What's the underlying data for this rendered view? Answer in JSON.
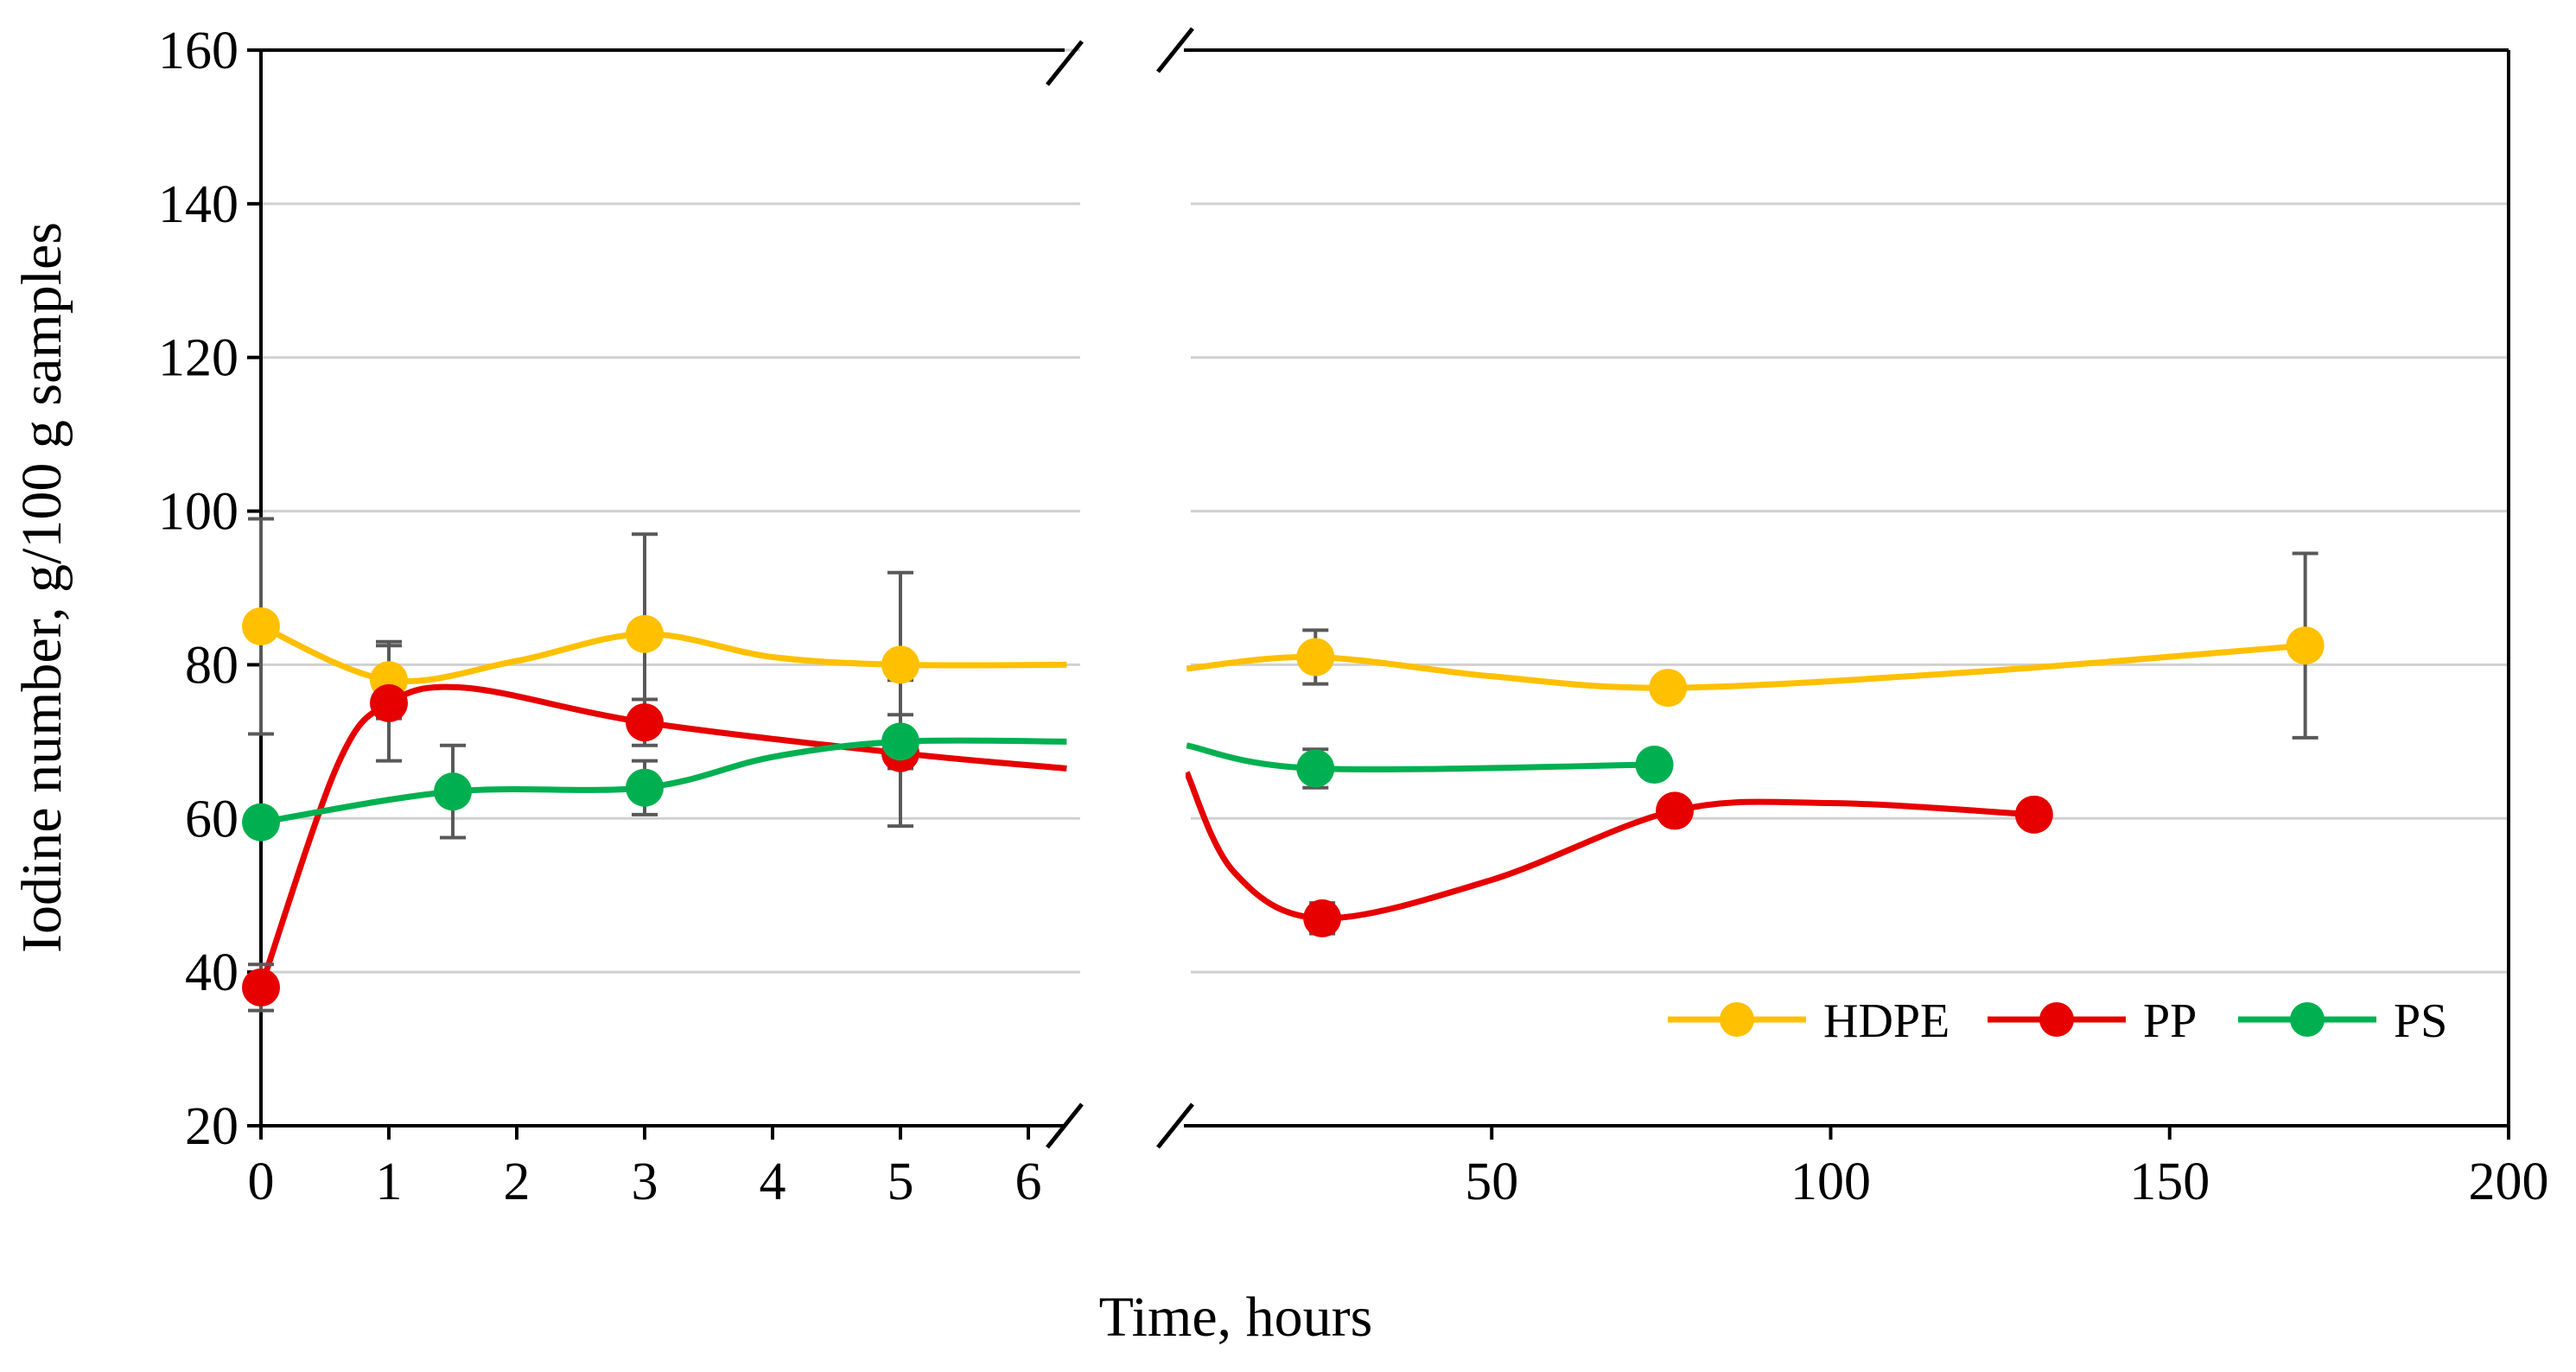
{
  "chart_data": {
    "type": "line",
    "title": "",
    "xlabel": "Time, hours",
    "ylabel": "Iodine number, g/100 g samples",
    "ylim": [
      20,
      160
    ],
    "yticks": [
      20,
      40,
      60,
      80,
      100,
      120,
      140,
      160
    ],
    "y_gridlines": true,
    "x_axis_broken": true,
    "panels": [
      {
        "name": "short",
        "xlim": [
          0,
          6
        ],
        "xticks": [
          0,
          1,
          2,
          3,
          4,
          5,
          6
        ]
      },
      {
        "name": "long",
        "xlim": [
          0,
          200
        ],
        "xticks": [
          50,
          100,
          150,
          200
        ]
      }
    ],
    "legend": {
      "placement": "bottom-right",
      "entries": [
        "HDPE",
        "PP",
        "PS"
      ]
    },
    "series": [
      {
        "name": "HDPE",
        "color": "#FFC000",
        "points": [
          {
            "x": 0,
            "y": 85,
            "err": 14,
            "panel": "short"
          },
          {
            "x": 1,
            "y": 78,
            "err": 5,
            "panel": "short"
          },
          {
            "x": 3,
            "y": 84,
            "err": 13,
            "panel": "short"
          },
          {
            "x": 5,
            "y": 80,
            "err": 12,
            "panel": "short"
          },
          {
            "x": 24,
            "y": 81,
            "err": 3.5,
            "panel": "long"
          },
          {
            "x": 76,
            "y": 77,
            "err": 0,
            "panel": "long"
          },
          {
            "x": 170,
            "y": 82.5,
            "err": 12,
            "panel": "long"
          }
        ],
        "curve_short": [
          [
            0,
            85
          ],
          [
            1,
            78
          ],
          [
            2,
            80.5
          ],
          [
            3,
            84
          ],
          [
            4,
            81
          ],
          [
            5,
            80
          ],
          [
            6.3,
            80
          ]
        ],
        "curve_long": [
          [
            5,
            79.5
          ],
          [
            24,
            81
          ],
          [
            50,
            78.5
          ],
          [
            76,
            77
          ],
          [
            120,
            79
          ],
          [
            170,
            82.5
          ]
        ]
      },
      {
        "name": "PP",
        "color": "#E60000",
        "points": [
          {
            "x": 0,
            "y": 38,
            "err": 3,
            "panel": "short"
          },
          {
            "x": 1,
            "y": 75,
            "err": 7.5,
            "panel": "short"
          },
          {
            "x": 3,
            "y": 72.5,
            "err": 3,
            "panel": "short"
          },
          {
            "x": 5,
            "y": 68.5,
            "err": 9.5,
            "panel": "short"
          },
          {
            "x": 25,
            "y": 47,
            "err": 2,
            "panel": "long"
          },
          {
            "x": 77,
            "y": 61,
            "err": 0,
            "panel": "long"
          },
          {
            "x": 130,
            "y": 60.5,
            "err": 0,
            "panel": "long"
          }
        ],
        "curve_short": [
          [
            0,
            38
          ],
          [
            0.6,
            67
          ],
          [
            1,
            75
          ],
          [
            1.6,
            77
          ],
          [
            3,
            72.5
          ],
          [
            5,
            68.5
          ],
          [
            6.3,
            66.5
          ]
        ],
        "curve_long": [
          [
            5,
            66
          ],
          [
            12,
            53
          ],
          [
            25,
            47
          ],
          [
            50,
            52
          ],
          [
            77,
            61
          ],
          [
            100,
            62
          ],
          [
            130,
            60.5
          ]
        ]
      },
      {
        "name": "PS",
        "color": "#00B050",
        "points": [
          {
            "x": 0,
            "y": 59.5,
            "err": 0,
            "panel": "short"
          },
          {
            "x": 1.5,
            "y": 63.5,
            "err": 6,
            "panel": "short"
          },
          {
            "x": 3,
            "y": 64,
            "err": 3.5,
            "panel": "short"
          },
          {
            "x": 5,
            "y": 70,
            "err": 3.5,
            "panel": "short"
          },
          {
            "x": 24,
            "y": 66.5,
            "err": 2.5,
            "panel": "long"
          },
          {
            "x": 74,
            "y": 67,
            "err": 0,
            "panel": "long"
          }
        ],
        "curve_short": [
          [
            0,
            59.5
          ],
          [
            1.5,
            63.5
          ],
          [
            3,
            64
          ],
          [
            4,
            68
          ],
          [
            5,
            70
          ],
          [
            6.3,
            70
          ]
        ],
        "curve_long": [
          [
            5,
            69.5
          ],
          [
            24,
            66.5
          ],
          [
            74,
            67
          ]
        ]
      }
    ]
  }
}
